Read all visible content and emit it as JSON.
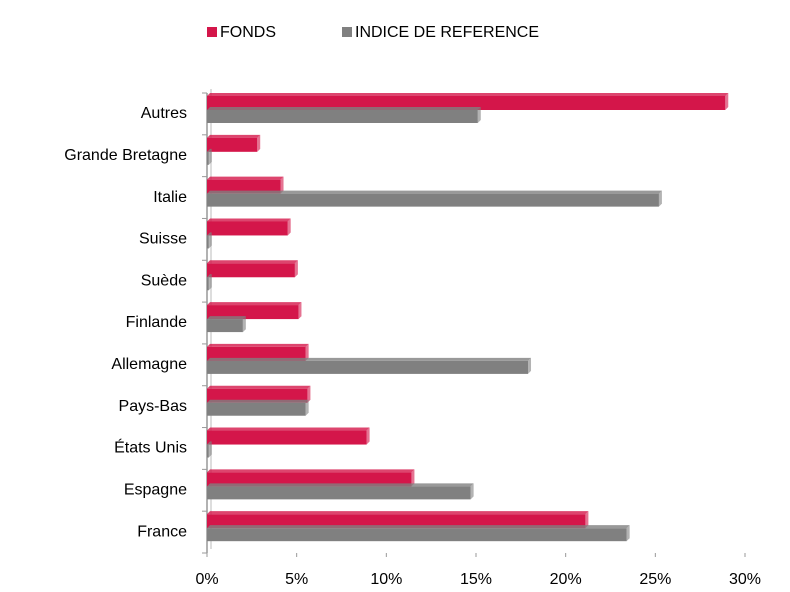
{
  "chart_data": {
    "type": "bar",
    "orientation": "horizontal",
    "categories": [
      "France",
      "Espagne",
      "États Unis",
      "Pays-Bas",
      "Allemagne",
      "Finlande",
      "Suède",
      "Suisse",
      "Italie",
      "Grande Bretagne",
      "Autres"
    ],
    "series": [
      {
        "name": "FONDS",
        "color": "#d4164a",
        "values": [
          21.1,
          11.4,
          8.9,
          5.6,
          5.5,
          5.1,
          4.9,
          4.5,
          4.1,
          2.8,
          28.9
        ]
      },
      {
        "name": "INDICE DE REFERENCE",
        "color": "#808080",
        "values": [
          23.4,
          14.7,
          0.1,
          5.5,
          17.9,
          2.0,
          0.1,
          0.1,
          25.2,
          0.1,
          15.1
        ]
      }
    ],
    "xlim": [
      0,
      30
    ],
    "xticks": [
      {
        "value": 0,
        "label": "0%"
      },
      {
        "value": 5,
        "label": "5%"
      },
      {
        "value": 10,
        "label": "10%"
      },
      {
        "value": 15,
        "label": "15%"
      },
      {
        "value": 20,
        "label": "20%"
      },
      {
        "value": 25,
        "label": "25%"
      },
      {
        "value": 30,
        "label": "30%"
      }
    ],
    "legend": "top"
  }
}
